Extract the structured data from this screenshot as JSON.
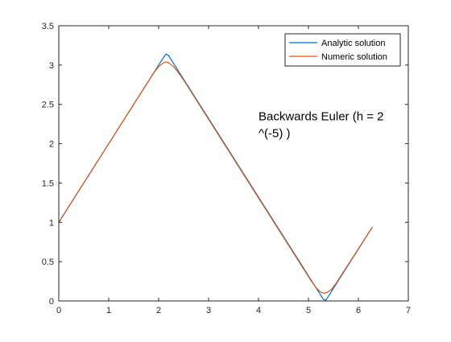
{
  "chart_data": {
    "type": "line",
    "title": "",
    "xlabel": "",
    "ylabel": "",
    "xlim": [
      0,
      7
    ],
    "ylim": [
      0,
      3.5
    ],
    "x_ticks": [
      0,
      1,
      2,
      3,
      4,
      5,
      6,
      7
    ],
    "x_tick_labels": [
      "0",
      "1",
      "2",
      "3",
      "4",
      "5",
      "6",
      "7"
    ],
    "y_ticks": [
      0,
      0.5,
      1,
      1.5,
      2,
      2.5,
      3,
      3.5
    ],
    "y_tick_labels": [
      "0",
      "0.5",
      "1",
      "1.5",
      "2",
      "2.5",
      "3",
      "3.5"
    ],
    "grid": false,
    "legend_position": "top-right",
    "annotation": {
      "lines": [
        "Backwards Euler (h = 2",
        "^(-5) )"
      ],
      "x": 4.0,
      "y": 2.3
    },
    "series": [
      {
        "name": "Analytic solution",
        "color": "#0072BD",
        "x": [
          0,
          2.1,
          2.15,
          2.2,
          2.25,
          5.25,
          5.3,
          5.35,
          5.4,
          6.28
        ],
        "y": [
          1.0,
          3.1,
          3.14,
          3.12,
          3.07,
          0.07,
          0.02,
          0.01,
          0.06,
          0.94
        ]
      },
      {
        "name": "Numeric solution",
        "color": "#D95319",
        "x": [
          0,
          1.9,
          2.0,
          2.1,
          2.15,
          2.2,
          2.3,
          2.4,
          2.5,
          5.05,
          5.15,
          5.25,
          5.3,
          5.35,
          5.45,
          5.55,
          6.28
        ],
        "y": [
          1.0,
          2.9,
          2.98,
          3.03,
          3.04,
          3.03,
          2.98,
          2.9,
          2.81,
          0.26,
          0.17,
          0.11,
          0.1,
          0.1,
          0.14,
          0.22,
          0.94
        ]
      }
    ]
  }
}
